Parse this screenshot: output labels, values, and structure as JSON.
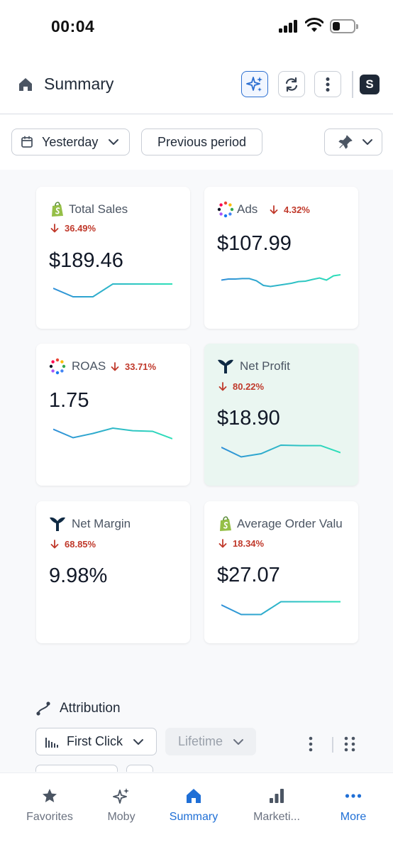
{
  "status_bar": {
    "time": "00:04"
  },
  "header": {
    "title": "Summary",
    "shop_initial": "S"
  },
  "filters": {
    "date_range": "Yesterday",
    "compare": "Previous period"
  },
  "cards": [
    {
      "id": "total-sales",
      "title": "Total Sales",
      "change": "36.49%",
      "value": "$189.46",
      "icon": "shopify-icon",
      "trend": [
        0.6,
        0.2,
        0.2,
        0.8,
        0.8,
        0.8,
        0.8
      ]
    },
    {
      "id": "ads",
      "title": "Ads",
      "change": "4.32%",
      "value": "$107.99",
      "icon": "ads-dots-icon",
      "trend": [
        0.45,
        0.5,
        0.5,
        0.52,
        0.52,
        0.42,
        0.2,
        0.15,
        0.2,
        0.25,
        0.3,
        0.38,
        0.4,
        0.48,
        0.55,
        0.45,
        0.65,
        0.7
      ]
    },
    {
      "id": "roas",
      "title": "ROAS",
      "change": "33.71%",
      "value": "1.75",
      "icon": "ads-dots-icon",
      "trend": [
        0.75,
        0.35,
        0.55,
        0.8,
        0.68,
        0.65,
        0.3
      ]
    },
    {
      "id": "net-profit",
      "title": "Net Profit",
      "change": "80.22%",
      "value": "$18.90",
      "icon": "triple-whale-icon",
      "trend": [
        0.7,
        0.25,
        0.4,
        0.8,
        0.78,
        0.78,
        0.45
      ]
    },
    {
      "id": "net-margin",
      "title": "Net Margin",
      "change": "68.85%",
      "value": "9.98%",
      "icon": "triple-whale-icon",
      "trend": []
    },
    {
      "id": "aov",
      "title": "Average Order Valu",
      "change": "18.34%",
      "value": "$27.07",
      "icon": "shopify-icon",
      "trend": [
        0.7,
        0.25,
        0.25,
        0.85,
        0.85,
        0.85,
        0.85
      ]
    }
  ],
  "attribution": {
    "title": "Attribution",
    "model": "First Click",
    "window": "Lifetime"
  },
  "tabs": [
    {
      "id": "favorites",
      "label": "Favorites",
      "icon": "star-icon"
    },
    {
      "id": "moby",
      "label": "Moby",
      "icon": "sparkles-icon"
    },
    {
      "id": "summary",
      "label": "Summary",
      "icon": "home-icon"
    },
    {
      "id": "marketing",
      "label": "Marketi...",
      "icon": "bar-chart-icon"
    },
    {
      "id": "more",
      "label": "More",
      "icon": "more-dots-icon"
    }
  ],
  "colors": {
    "accent": "#1f6fd6",
    "negative": "#c0392b",
    "spark_start": "#2f8fd8",
    "spark_end": "#2ee0b8",
    "highlight": "#eaf6f1"
  }
}
